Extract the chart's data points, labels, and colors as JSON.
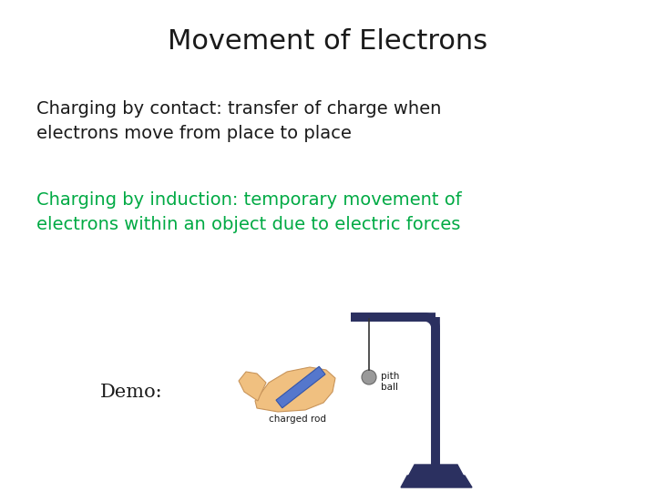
{
  "title": "Movement of Electrons",
  "title_fontsize": 22,
  "title_color": "#1a1a1a",
  "body_text_1": "Charging by contact: transfer of charge when\nelectrons move from place to place",
  "body_text_1_color": "#1a1a1a",
  "body_text_1_fontsize": 14,
  "body_text_2": "Charging by induction: temporary movement of\nelectrons within an object due to electric forces",
  "body_text_2_color": "#00aa44",
  "body_text_2_fontsize": 14,
  "demo_text": "Demo:",
  "demo_text_color": "#1a1a1a",
  "demo_text_fontsize": 15,
  "background_color": "#ffffff",
  "pith_ball_label": "pith\nball",
  "charged_rod_label": "charged rod",
  "stand_color": "#2b3060",
  "ball_color": "#999999",
  "hand_color": "#f0c080",
  "rod_color": "#5577cc"
}
